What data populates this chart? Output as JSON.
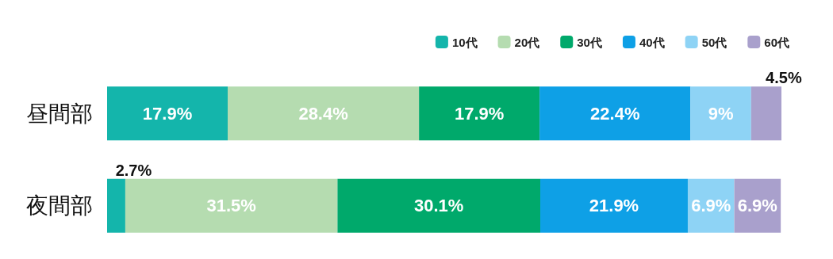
{
  "chart_data": {
    "type": "bar",
    "orientation": "horizontal",
    "stacked": true,
    "legend": "top right",
    "tick_labels": "y",
    "grid": false,
    "categories": [
      "昼間部",
      "夜間部"
    ],
    "series": [
      {
        "name": "10代",
        "color": "#14b5ab",
        "values": [
          17.9,
          2.7
        ],
        "value_labels": [
          "17.9%",
          "2.7%"
        ]
      },
      {
        "name": "20代",
        "color": "#b5dcb0",
        "values": [
          28.4,
          31.5
        ],
        "value_labels": [
          "28.4%",
          "31.5%"
        ]
      },
      {
        "name": "30代",
        "color": "#00a96b",
        "values": [
          17.9,
          30.1
        ],
        "value_labels": [
          "17.9%",
          "30.1%"
        ]
      },
      {
        "name": "40代",
        "color": "#0ea0e6",
        "values": [
          22.4,
          21.9
        ],
        "value_labels": [
          "22.4%",
          "21.9%"
        ]
      },
      {
        "name": "50代",
        "color": "#8ed3f5",
        "values": [
          9,
          6.9
        ],
        "value_labels": [
          "9%",
          "6.9%"
        ]
      },
      {
        "name": "60代",
        "color": "#a9a0cc",
        "values": [
          4.5,
          6.9
        ],
        "value_labels": [
          "4.5%",
          "6.9%"
        ]
      }
    ]
  }
}
